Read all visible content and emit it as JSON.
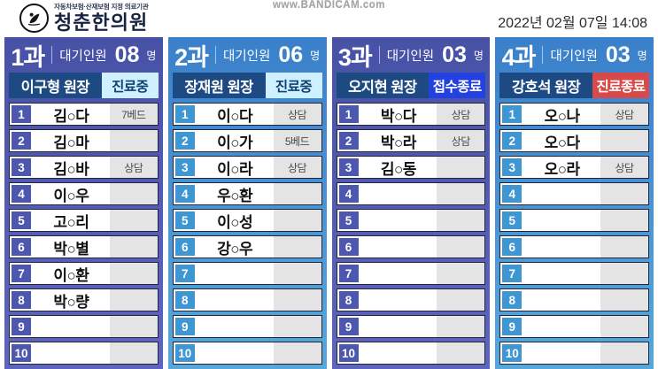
{
  "header": {
    "clinic_tagline": "자동차보험·산재보험 지정 의료기관",
    "clinic_name": "청춘한의원",
    "watermark": "www.BANDICAM.com",
    "datetime": "2022년 02월 07일  14:08"
  },
  "labels": {
    "waiting_label": "대기인원",
    "count_suffix": "명"
  },
  "colors": {
    "indigo_column": "#4f59b0",
    "blue_column": "#4a9ed6",
    "doctor_bar": "#1e4a84",
    "status_in_treatment_bg": "#cff0fe",
    "status_in_treatment_text": "#10406f",
    "status_registration_closed_bg": "#2341e0",
    "status_treatment_ended_bg": "#d84a4a"
  },
  "icons": {
    "clinic_logo": "clinic-logo-icon"
  },
  "departments": [
    {
      "name": "1과",
      "waiting_count": "08",
      "doctor": "이구형 원장",
      "status": "진료중",
      "status_type": "open",
      "theme": "indigo",
      "rows": [
        {
          "no": "1",
          "name": "김○다",
          "note": "7베드"
        },
        {
          "no": "2",
          "name": "김○마",
          "note": ""
        },
        {
          "no": "3",
          "name": "김○바",
          "note": "상담"
        },
        {
          "no": "4",
          "name": "이○우",
          "note": ""
        },
        {
          "no": "5",
          "name": "고○리",
          "note": ""
        },
        {
          "no": "6",
          "name": "박○별",
          "note": ""
        },
        {
          "no": "7",
          "name": "이○환",
          "note": ""
        },
        {
          "no": "8",
          "name": "박○량",
          "note": ""
        },
        {
          "no": "9",
          "name": "",
          "note": ""
        },
        {
          "no": "10",
          "name": "",
          "note": ""
        }
      ]
    },
    {
      "name": "2과",
      "waiting_count": "06",
      "doctor": "장재원 원장",
      "status": "진료중",
      "status_type": "open",
      "theme": "blue",
      "rows": [
        {
          "no": "1",
          "name": "이○다",
          "note": "상담"
        },
        {
          "no": "2",
          "name": "이○가",
          "note": "5베드"
        },
        {
          "no": "3",
          "name": "이○라",
          "note": "상담"
        },
        {
          "no": "4",
          "name": "우○환",
          "note": ""
        },
        {
          "no": "5",
          "name": "이○성",
          "note": ""
        },
        {
          "no": "6",
          "name": "강○우",
          "note": ""
        },
        {
          "no": "7",
          "name": "",
          "note": ""
        },
        {
          "no": "8",
          "name": "",
          "note": ""
        },
        {
          "no": "9",
          "name": "",
          "note": ""
        },
        {
          "no": "10",
          "name": "",
          "note": ""
        }
      ]
    },
    {
      "name": "3과",
      "waiting_count": "03",
      "doctor": "오지현 원장",
      "status": "접수종료",
      "status_type": "closed-blue",
      "theme": "indigo",
      "rows": [
        {
          "no": "1",
          "name": "박○다",
          "note": "상담"
        },
        {
          "no": "2",
          "name": "박○라",
          "note": "상담"
        },
        {
          "no": "3",
          "name": "김○동",
          "note": ""
        },
        {
          "no": "4",
          "name": "",
          "note": ""
        },
        {
          "no": "5",
          "name": "",
          "note": ""
        },
        {
          "no": "6",
          "name": "",
          "note": ""
        },
        {
          "no": "7",
          "name": "",
          "note": ""
        },
        {
          "no": "8",
          "name": "",
          "note": ""
        },
        {
          "no": "9",
          "name": "",
          "note": ""
        },
        {
          "no": "10",
          "name": "",
          "note": ""
        }
      ]
    },
    {
      "name": "4과",
      "waiting_count": "03",
      "doctor": "강호석 원장",
      "status": "진료종료",
      "status_type": "closed-red",
      "theme": "blue",
      "rows": [
        {
          "no": "1",
          "name": "오○나",
          "note": "상담"
        },
        {
          "no": "2",
          "name": "오○다",
          "note": ""
        },
        {
          "no": "3",
          "name": "오○라",
          "note": "상담"
        },
        {
          "no": "4",
          "name": "",
          "note": ""
        },
        {
          "no": "5",
          "name": "",
          "note": ""
        },
        {
          "no": "6",
          "name": "",
          "note": ""
        },
        {
          "no": "7",
          "name": "",
          "note": ""
        },
        {
          "no": "8",
          "name": "",
          "note": ""
        },
        {
          "no": "9",
          "name": "",
          "note": ""
        },
        {
          "no": "10",
          "name": "",
          "note": ""
        }
      ]
    }
  ]
}
